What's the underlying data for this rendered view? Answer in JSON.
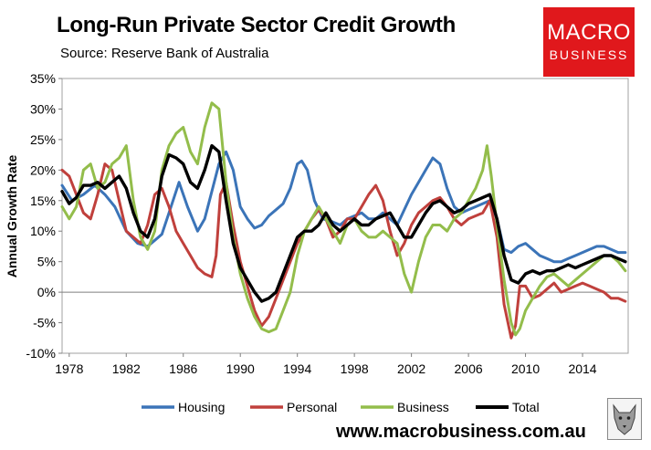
{
  "header": {
    "title": "Long-Run Private Sector Credit Growth",
    "subtitle": "Source: Reserve Bank of Australia"
  },
  "logo": {
    "line1": "MACRO",
    "line2": "BUSINESS"
  },
  "footer": {
    "url": "www.macrobusiness.com.au"
  },
  "colors": {
    "housing": "#3b74b8",
    "personal": "#c0403c",
    "business": "#93bd4b",
    "total": "#000000"
  },
  "chart_data": {
    "type": "line",
    "title": "Long-Run Private Sector Credit Growth",
    "ylabel": "Annual Growth Rate",
    "xlabel": "",
    "xlim": [
      1977.5,
      2017.2
    ],
    "ylim": [
      -10,
      35
    ],
    "y_ticks": [
      -10,
      -5,
      0,
      5,
      10,
      15,
      20,
      25,
      30,
      35
    ],
    "y_tick_labels": [
      "-10%",
      "-5%",
      "0%",
      "5%",
      "10%",
      "15%",
      "20%",
      "25%",
      "30%",
      "35%"
    ],
    "x_ticks": [
      1978,
      1982,
      1986,
      1990,
      1994,
      1998,
      2002,
      2006,
      2010,
      2014
    ],
    "x_tick_labels": [
      "1978",
      "1982",
      "1986",
      "1990",
      "1994",
      "1998",
      "2002",
      "2006",
      "2010",
      "2014"
    ],
    "grid": false,
    "legend_position": "bottom",
    "series": [
      {
        "name": "Housing",
        "color": "#3b74b8",
        "x": [
          1977.5,
          1978.2,
          1979,
          1979.8,
          1980.5,
          1981.2,
          1982,
          1982.8,
          1983.5,
          1984,
          1984.5,
          1985,
          1985.7,
          1986.3,
          1987,
          1987.5,
          1988,
          1988.5,
          1989,
          1989.5,
          1990,
          1990.5,
          1991,
          1991.5,
          1992,
          1992.5,
          1993,
          1993.5,
          1994,
          1994.3,
          1994.7,
          1995.2,
          1995.8,
          1996.5,
          1997,
          1997.5,
          1998,
          1998.5,
          1999,
          1999.5,
          2000,
          2000.5,
          2001,
          2001.5,
          2002,
          2002.5,
          2003,
          2003.5,
          2004,
          2004.5,
          2005,
          2005.5,
          2006,
          2006.5,
          2007,
          2007.5,
          2008,
          2008.5,
          2009,
          2009.5,
          2010,
          2010.5,
          2011,
          2011.5,
          2012,
          2012.5,
          2013,
          2013.5,
          2014,
          2014.5,
          2015,
          2015.5,
          2016,
          2016.5,
          2017
        ],
        "y": [
          17.5,
          15,
          16,
          17.5,
          16,
          14,
          10,
          8,
          7.5,
          8.5,
          9.5,
          13,
          18,
          14,
          10,
          12,
          16.5,
          21,
          23,
          20,
          14,
          12,
          10.5,
          11,
          12.5,
          13.5,
          14.5,
          17,
          21,
          21.5,
          20,
          15,
          12,
          11.5,
          11,
          12,
          12.5,
          13,
          12,
          12,
          13,
          12,
          11,
          13.5,
          16,
          18,
          20,
          22,
          21,
          17,
          14,
          13,
          13.5,
          14,
          14.5,
          15,
          12,
          7,
          6.5,
          7.5,
          8,
          7,
          6,
          5.5,
          5,
          5,
          5.5,
          6,
          6.5,
          7,
          7.5,
          7.5,
          7,
          6.5,
          6.5
        ]
      },
      {
        "name": "Personal",
        "color": "#c0403c",
        "x": [
          1977.5,
          1978,
          1978.5,
          1979,
          1979.5,
          1980,
          1980.5,
          1981,
          1981.5,
          1982,
          1982.5,
          1983,
          1983.5,
          1984,
          1984.5,
          1985,
          1985.5,
          1986,
          1986.5,
          1987,
          1987.5,
          1988,
          1988.3,
          1988.6,
          1989,
          1989.5,
          1990,
          1990.5,
          1991,
          1991.5,
          1992,
          1992.5,
          1993,
          1993.5,
          1994,
          1994.5,
          1995,
          1995.5,
          1996,
          1996.5,
          1997,
          1997.5,
          1998,
          1998.5,
          1999,
          1999.5,
          2000,
          2000.5,
          2001,
          2001.5,
          2002,
          2002.5,
          2003,
          2003.5,
          2004,
          2004.5,
          2005,
          2005.5,
          2006,
          2006.5,
          2007,
          2007.5,
          2008,
          2008.5,
          2009,
          2009.3,
          2009.6,
          2010,
          2010.5,
          2011,
          2011.5,
          2012,
          2012.5,
          2013,
          2013.5,
          2014,
          2014.5,
          2015,
          2015.5,
          2016,
          2016.5,
          2017
        ],
        "y": [
          20,
          19,
          16,
          13,
          12,
          16,
          21,
          20,
          15,
          10,
          9,
          8,
          11,
          16,
          17,
          14,
          10,
          8,
          6,
          4,
          3,
          2.5,
          6,
          16,
          18,
          11,
          5,
          1,
          -3,
          -5.5,
          -4,
          -1,
          2,
          5,
          8,
          10,
          12,
          13.5,
          12,
          9,
          10,
          12,
          12,
          14,
          16,
          17.5,
          15,
          10,
          6,
          8,
          11,
          13,
          14,
          15,
          15.5,
          14,
          12,
          11,
          12,
          12.5,
          13,
          15,
          9,
          -2,
          -7.5,
          -5.5,
          1,
          1,
          -1,
          -0.5,
          0.5,
          1.5,
          0,
          0.5,
          1,
          1.5,
          1,
          0.5,
          0,
          -1,
          -1,
          -1.5
        ]
      },
      {
        "name": "Business",
        "color": "#93bd4b",
        "x": [
          1977.5,
          1978,
          1978.5,
          1979,
          1979.5,
          1980,
          1980.5,
          1981,
          1981.5,
          1982,
          1982.5,
          1983,
          1983.5,
          1984,
          1984.5,
          1985,
          1985.5,
          1986,
          1986.5,
          1987,
          1987.5,
          1988,
          1988.5,
          1989,
          1989.5,
          1990,
          1990.5,
          1991,
          1991.5,
          1992,
          1992.5,
          1993,
          1993.5,
          1994,
          1994.5,
          1995,
          1995.5,
          1996,
          1996.5,
          1997,
          1997.5,
          1998,
          1998.5,
          1999,
          1999.5,
          2000,
          2000.5,
          2001,
          2001.5,
          2002,
          2002.5,
          2003,
          2003.5,
          2004,
          2004.5,
          2005,
          2005.5,
          2006,
          2006.5,
          2007,
          2007.3,
          2007.6,
          2008,
          2008.5,
          2009,
          2009.3,
          2009.6,
          2010,
          2010.5,
          2011,
          2011.5,
          2012,
          2012.5,
          2013,
          2013.5,
          2014,
          2014.5,
          2015,
          2015.5,
          2016,
          2016.5,
          2017
        ],
        "y": [
          14,
          12,
          14,
          20,
          21,
          17,
          18,
          21,
          22,
          24,
          15,
          9,
          7,
          10,
          20,
          24,
          26,
          27,
          23,
          21,
          27,
          31,
          30,
          18,
          9,
          3,
          -1,
          -4,
          -6,
          -6.5,
          -6,
          -3,
          0,
          6,
          10,
          12,
          14,
          12,
          10,
          8,
          11,
          12,
          10,
          9,
          9,
          10,
          9,
          8,
          3,
          0,
          5,
          9,
          11,
          11,
          10,
          12,
          13,
          15,
          17,
          20,
          24,
          19,
          11,
          2,
          -5,
          -7,
          -6,
          -3,
          -1,
          1,
          2.5,
          3,
          2,
          1,
          2,
          3,
          4,
          5,
          6,
          6,
          5,
          3.5
        ]
      },
      {
        "name": "Total",
        "color": "#000000",
        "x": [
          1977.5,
          1978,
          1978.5,
          1979,
          1979.5,
          1980,
          1980.5,
          1981,
          1981.5,
          1982,
          1982.5,
          1983,
          1983.5,
          1984,
          1984.5,
          1985,
          1985.5,
          1986,
          1986.5,
          1987,
          1987.5,
          1988,
          1988.5,
          1989,
          1989.5,
          1990,
          1990.5,
          1991,
          1991.5,
          1992,
          1992.5,
          1993,
          1993.5,
          1994,
          1994.5,
          1995,
          1995.5,
          1996,
          1996.5,
          1997,
          1997.5,
          1998,
          1998.5,
          1999,
          1999.5,
          2000,
          2000.5,
          2001,
          2001.5,
          2002,
          2002.5,
          2003,
          2003.5,
          2004,
          2004.5,
          2005,
          2005.5,
          2006,
          2006.5,
          2007,
          2007.5,
          2008,
          2008.5,
          2009,
          2009.5,
          2010,
          2010.5,
          2011,
          2011.5,
          2012,
          2012.5,
          2013,
          2013.5,
          2014,
          2014.5,
          2015,
          2015.5,
          2016,
          2016.5,
          2017
        ],
        "y": [
          16.5,
          14.5,
          15.5,
          17.5,
          17.5,
          18,
          17,
          18,
          19,
          17,
          13,
          10,
          9,
          12,
          19,
          22.5,
          22,
          21,
          18,
          17,
          20,
          24,
          23,
          15,
          8,
          4,
          2,
          0,
          -1.5,
          -1,
          0,
          3,
          6,
          9,
          10,
          10,
          11,
          13,
          11,
          10,
          11,
          12,
          11,
          11,
          12,
          12.5,
          13,
          11,
          9,
          9,
          11,
          13,
          14.5,
          15,
          14,
          13,
          13.5,
          14.5,
          15,
          15.5,
          16,
          12,
          6,
          2,
          1.5,
          3,
          3.5,
          3,
          3.5,
          3.5,
          4,
          4.5,
          4,
          4.5,
          5,
          5.5,
          6,
          6,
          5.5,
          5
        ]
      }
    ]
  }
}
